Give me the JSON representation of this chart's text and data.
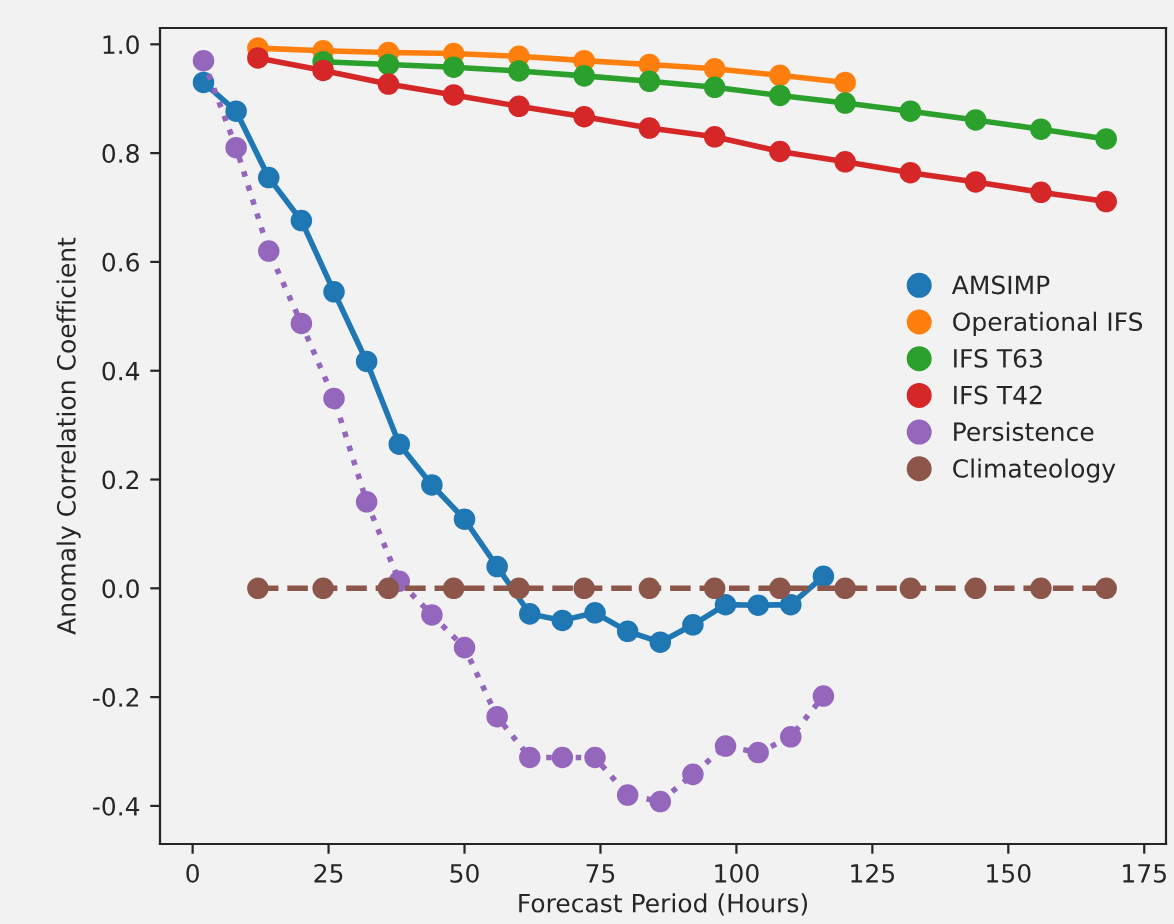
{
  "chart_data": {
    "type": "line",
    "xlabel": "Forecast Period (Hours)",
    "ylabel": "Anomaly Correlation Coefficient",
    "xlim": [
      -6,
      179
    ],
    "xticks": [
      0,
      25,
      50,
      75,
      100,
      125,
      150,
      175
    ],
    "ylim": [
      -0.47,
      1.03
    ],
    "yticks": [
      -0.4,
      -0.2,
      {
        "value": 0,
        "label": "0.0"
      },
      0.2,
      0.4,
      0.6,
      0.8,
      {
        "value": 1,
        "label": "1.0"
      }
    ],
    "grid": false,
    "legend": "right",
    "marker": "circle",
    "series": [
      {
        "name": "AMSIMP",
        "color": "#1f77b4",
        "line_style": "solid",
        "x": [
          2,
          8,
          14,
          20,
          26,
          32,
          38,
          44,
          50,
          56,
          62,
          68,
          74,
          80,
          86,
          92,
          98,
          104,
          110,
          116
        ],
        "values": [
          0.93,
          0.877,
          0.755,
          0.676,
          0.545,
          0.417,
          0.265,
          0.19,
          0.127,
          0.04,
          -0.047,
          -0.059,
          -0.045,
          -0.079,
          -0.099,
          -0.067,
          -0.03,
          -0.031,
          -0.03,
          0.022
        ]
      },
      {
        "name": "Operational IFS",
        "color": "#ff7f0e",
        "line_style": "solid",
        "x": [
          12,
          24,
          36,
          48,
          60,
          72,
          84,
          96,
          108,
          120
        ],
        "values": [
          0.993,
          0.988,
          0.985,
          0.983,
          0.978,
          0.97,
          0.963,
          0.955,
          0.943,
          0.93
        ]
      },
      {
        "name": "IFS T63",
        "color": "#2ca02c",
        "line_style": "solid",
        "x": [
          24,
          36,
          48,
          60,
          72,
          84,
          96,
          108,
          120,
          132,
          144,
          156,
          168
        ],
        "values": [
          0.968,
          0.963,
          0.958,
          0.951,
          0.942,
          0.932,
          0.921,
          0.906,
          0.892,
          0.877,
          0.861,
          0.844,
          0.826
        ]
      },
      {
        "name": "IFS T42",
        "color": "#d62728",
        "line_style": "solid",
        "x": [
          12,
          24,
          36,
          48,
          60,
          72,
          84,
          96,
          108,
          120,
          132,
          144,
          156,
          168
        ],
        "values": [
          0.975,
          0.952,
          0.927,
          0.907,
          0.886,
          0.867,
          0.846,
          0.83,
          0.803,
          0.784,
          0.764,
          0.747,
          0.728,
          0.711
        ]
      },
      {
        "name": "Persistence",
        "color": "#9467bd",
        "line_style": "dotted",
        "x": [
          2,
          8,
          14,
          20,
          26,
          32,
          38,
          44,
          50,
          56,
          62,
          68,
          74,
          80,
          86,
          92,
          98,
          104,
          110,
          116
        ],
        "values": [
          0.97,
          0.81,
          0.62,
          0.487,
          0.349,
          0.159,
          0.013,
          -0.049,
          -0.109,
          -0.236,
          -0.311,
          -0.311,
          -0.311,
          -0.38,
          -0.392,
          -0.342,
          -0.29,
          -0.302,
          -0.273,
          -0.198
        ]
      },
      {
        "name": "Climateology",
        "color": "#8c564b",
        "line_style": "dashed",
        "x": [
          12,
          24,
          36,
          48,
          60,
          72,
          84,
          96,
          108,
          120,
          132,
          144,
          156,
          168
        ],
        "values": [
          0,
          0,
          0,
          0,
          0,
          0,
          0,
          0,
          0,
          0,
          0,
          0,
          0,
          0
        ]
      }
    ]
  }
}
